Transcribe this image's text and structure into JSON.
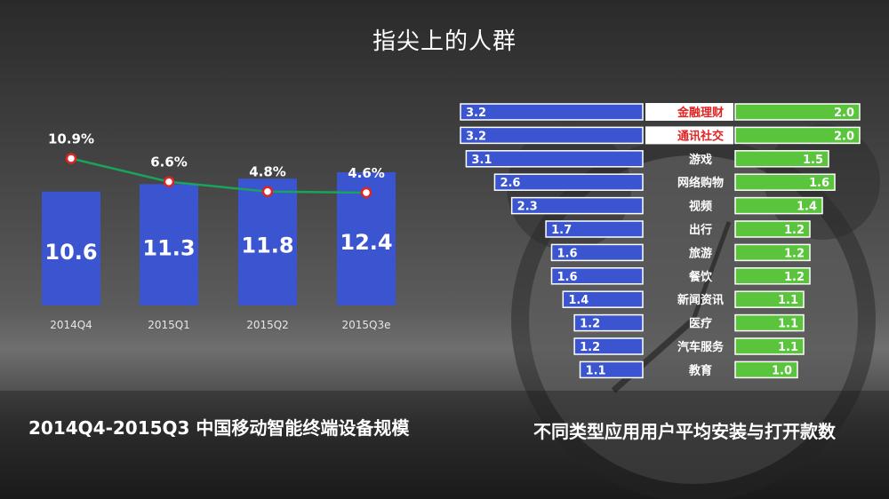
{
  "title": "指尖上的人群",
  "colors": {
    "blue": "#3a55cf",
    "green": "#5ac43c",
    "line": "#1aa35a",
    "red": "#e02424",
    "white": "#ffffff"
  },
  "chart_data": [
    {
      "type": "bar",
      "subtitle": "2014Q4-2015Q3 中国移动智能终端设备规模",
      "categories": [
        "2014Q4",
        "2015Q1",
        "2015Q2",
        "2015Q3e"
      ],
      "series": [
        {
          "type": "bar",
          "values": [
            10.6,
            11.3,
            11.8,
            12.4
          ]
        },
        {
          "type": "line",
          "values": [
            10.9,
            6.6,
            4.8,
            4.6
          ],
          "labels": [
            "10.9%",
            "6.6%",
            "4.8%",
            "4.6%"
          ]
        }
      ]
    },
    {
      "type": "bar",
      "orientation": "horizontal-diverging",
      "subtitle": "不同类型应用用户平均安装与打开款数",
      "categories": [
        "金融理财",
        "通讯社交",
        "游戏",
        "网络购物",
        "视频",
        "出行",
        "旅游",
        "餐饮",
        "新闻资讯",
        "医疗",
        "汽车服务",
        "教育"
      ],
      "highlight": [
        "金融理财",
        "通讯社交"
      ],
      "series": [
        {
          "side": "left",
          "color": "#3a55cf",
          "values": [
            3.2,
            3.2,
            3.1,
            2.6,
            2.3,
            1.7,
            1.6,
            1.6,
            1.4,
            1.2,
            1.2,
            1.1
          ]
        },
        {
          "side": "right",
          "color": "#5ac43c",
          "values": [
            2.0,
            2.0,
            1.5,
            1.6,
            1.4,
            1.2,
            1.2,
            1.2,
            1.1,
            1.1,
            1.1,
            1.0
          ]
        }
      ]
    }
  ]
}
